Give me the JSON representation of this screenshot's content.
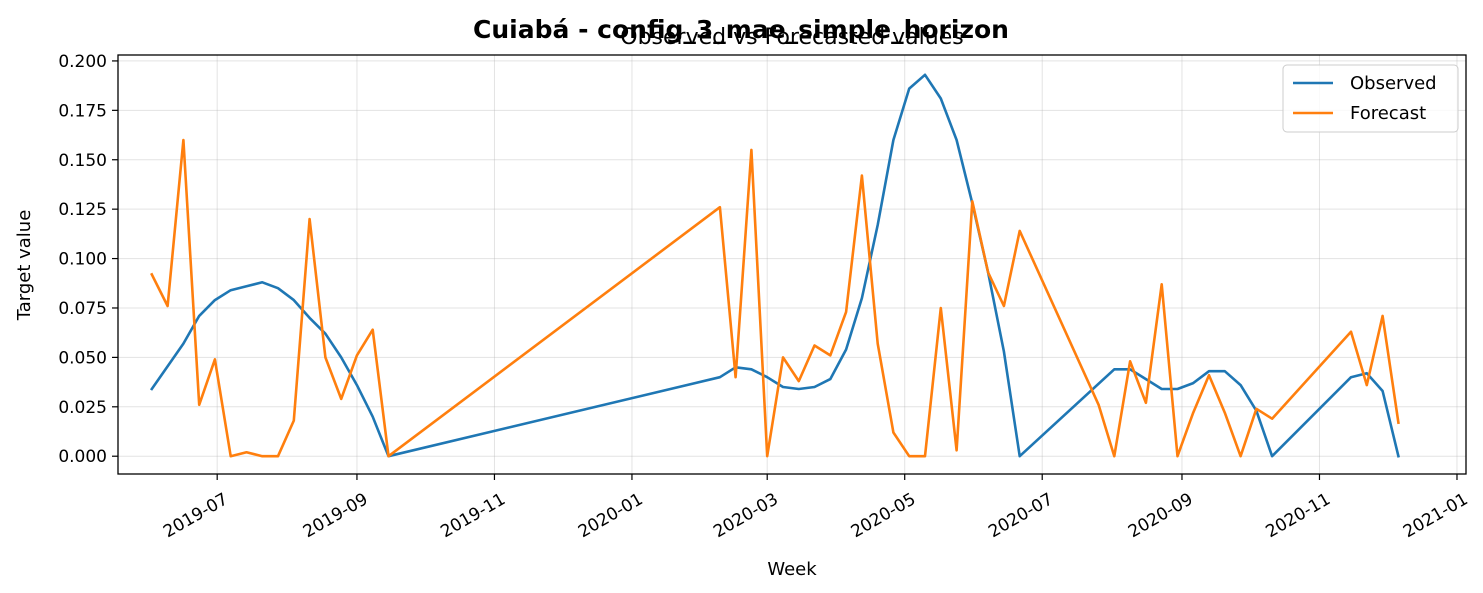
{
  "chart_data": {
    "type": "line",
    "suptitle": "Cuiabá - config_3_mae_simple_horizon",
    "title": "Observed vs Forecasted values",
    "xlabel": "Week",
    "ylabel": "Target value",
    "xlim": [
      "2019-05-18",
      "2021-01-05"
    ],
    "ylim": [
      -0.009,
      0.203
    ],
    "x_ticks": [
      "2019-07",
      "2019-09",
      "2019-11",
      "2020-01",
      "2020-03",
      "2020-05",
      "2020-07",
      "2020-09",
      "2020-11",
      "2021-01"
    ],
    "x_tick_dates": [
      "2019-07-01",
      "2019-09-01",
      "2019-11-01",
      "2020-01-01",
      "2020-03-01",
      "2020-05-01",
      "2020-07-01",
      "2020-09-01",
      "2020-11-01",
      "2021-01-01"
    ],
    "y_ticks": [
      "0.000",
      "0.025",
      "0.050",
      "0.075",
      "0.100",
      "0.125",
      "0.150",
      "0.175",
      "0.200"
    ],
    "y_tick_values": [
      0,
      0.025,
      0.05,
      0.075,
      0.1,
      0.125,
      0.15,
      0.175,
      0.2
    ],
    "grid": true,
    "legend_position": "top-right",
    "series": [
      {
        "name": "Observed",
        "color": "#1f77b4",
        "points": [
          [
            "2019-06-02",
            0.034
          ],
          [
            "2019-06-16",
            0.057
          ],
          [
            "2019-06-23",
            0.071
          ],
          [
            "2019-06-30",
            0.079
          ],
          [
            "2019-07-07",
            0.084
          ],
          [
            "2019-07-14",
            0.086
          ],
          [
            "2019-07-21",
            0.088
          ],
          [
            "2019-07-28",
            0.085
          ],
          [
            "2019-08-04",
            0.079
          ],
          [
            "2019-08-11",
            0.07
          ],
          [
            "2019-08-18",
            0.062
          ],
          [
            "2019-08-25",
            0.05
          ],
          [
            "2019-09-01",
            0.036
          ],
          [
            "2019-09-08",
            0.02
          ],
          [
            "2019-09-15",
            0.0
          ],
          [
            "2020-02-09",
            0.04
          ],
          [
            "2020-02-16",
            0.045
          ],
          [
            "2020-02-23",
            0.044
          ],
          [
            "2020-03-01",
            0.04
          ],
          [
            "2020-03-08",
            0.035
          ],
          [
            "2020-03-15",
            0.034
          ],
          [
            "2020-03-22",
            0.035
          ],
          [
            "2020-03-29",
            0.039
          ],
          [
            "2020-04-05",
            0.054
          ],
          [
            "2020-04-12",
            0.08
          ],
          [
            "2020-04-19",
            0.117
          ],
          [
            "2020-04-26",
            0.16
          ],
          [
            "2020-05-03",
            0.186
          ],
          [
            "2020-05-10",
            0.193
          ],
          [
            "2020-05-17",
            0.181
          ],
          [
            "2020-05-24",
            0.16
          ],
          [
            "2020-05-31",
            0.128
          ],
          [
            "2020-06-07",
            0.093
          ],
          [
            "2020-06-14",
            0.053
          ],
          [
            "2020-06-21",
            0.0
          ],
          [
            "2020-08-02",
            0.044
          ],
          [
            "2020-08-09",
            0.044
          ],
          [
            "2020-08-16",
            0.039
          ],
          [
            "2020-08-23",
            0.034
          ],
          [
            "2020-08-30",
            0.034
          ],
          [
            "2020-09-06",
            0.037
          ],
          [
            "2020-09-13",
            0.043
          ],
          [
            "2020-09-20",
            0.043
          ],
          [
            "2020-09-27",
            0.036
          ],
          [
            "2020-10-04",
            0.023
          ],
          [
            "2020-10-11",
            0.0
          ],
          [
            "2020-11-15",
            0.04
          ],
          [
            "2020-11-22",
            0.042
          ],
          [
            "2020-11-29",
            0.033
          ],
          [
            "2020-12-06",
            0.0
          ]
        ]
      },
      {
        "name": "Forecast",
        "color": "#ff7f0e",
        "points": [
          [
            "2019-06-02",
            0.092
          ],
          [
            "2019-06-09",
            0.076
          ],
          [
            "2019-06-16",
            0.16
          ],
          [
            "2019-06-23",
            0.026
          ],
          [
            "2019-06-30",
            0.049
          ],
          [
            "2019-07-07",
            0.0
          ],
          [
            "2019-07-14",
            0.002
          ],
          [
            "2019-07-21",
            0.0
          ],
          [
            "2019-07-28",
            0.0
          ],
          [
            "2019-08-04",
            0.018
          ],
          [
            "2019-08-11",
            0.12
          ],
          [
            "2019-08-18",
            0.05
          ],
          [
            "2019-08-25",
            0.029
          ],
          [
            "2019-09-01",
            0.051
          ],
          [
            "2019-09-08",
            0.064
          ],
          [
            "2019-09-15",
            0.0
          ],
          [
            "2020-02-09",
            0.126
          ],
          [
            "2020-02-16",
            0.04
          ],
          [
            "2020-02-23",
            0.155
          ],
          [
            "2020-03-01",
            0.0
          ],
          [
            "2020-03-08",
            0.05
          ],
          [
            "2020-03-15",
            0.038
          ],
          [
            "2020-03-22",
            0.056
          ],
          [
            "2020-03-29",
            0.051
          ],
          [
            "2020-04-05",
            0.073
          ],
          [
            "2020-04-12",
            0.142
          ],
          [
            "2020-04-19",
            0.057
          ],
          [
            "2020-04-26",
            0.012
          ],
          [
            "2020-05-03",
            0.0
          ],
          [
            "2020-05-10",
            0.0
          ],
          [
            "2020-05-17",
            0.075
          ],
          [
            "2020-05-24",
            0.003
          ],
          [
            "2020-05-31",
            0.129
          ],
          [
            "2020-06-07",
            0.093
          ],
          [
            "2020-06-14",
            0.076
          ],
          [
            "2020-06-21",
            0.114
          ],
          [
            "2020-07-26",
            0.026
          ],
          [
            "2020-08-02",
            0.0
          ],
          [
            "2020-08-09",
            0.048
          ],
          [
            "2020-08-16",
            0.027
          ],
          [
            "2020-08-23",
            0.087
          ],
          [
            "2020-08-30",
            0.0
          ],
          [
            "2020-09-06",
            0.022
          ],
          [
            "2020-09-13",
            0.041
          ],
          [
            "2020-09-20",
            0.022
          ],
          [
            "2020-09-27",
            0.0
          ],
          [
            "2020-10-04",
            0.024
          ],
          [
            "2020-10-11",
            0.019
          ],
          [
            "2020-11-15",
            0.063
          ],
          [
            "2020-11-22",
            0.036
          ],
          [
            "2020-11-29",
            0.071
          ],
          [
            "2020-12-06",
            0.017
          ]
        ]
      }
    ]
  }
}
